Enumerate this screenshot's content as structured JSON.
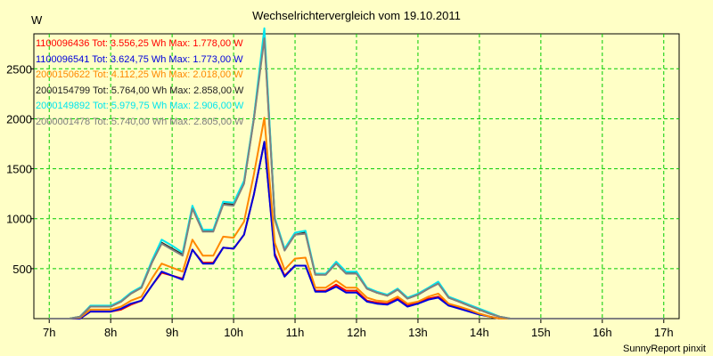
{
  "title": "Wechselrichtervergleich vom 19.10.2011",
  "y_unit": "W",
  "footer": "SunnyReport pinxit",
  "chart_data": {
    "type": "line",
    "title": "Wechselrichtervergleich vom 19.10.2011",
    "xlabel": "",
    "ylabel": "W",
    "x_range": [
      6.75,
      17.25
    ],
    "ylim": [
      0,
      2850
    ],
    "x_ticks": [
      7,
      8,
      9,
      10,
      11,
      12,
      13,
      14,
      15,
      16,
      17
    ],
    "x_tick_labels": [
      "7h",
      "8h",
      "9h",
      "10h",
      "11h",
      "12h",
      "13h",
      "14h",
      "15h",
      "16h",
      "17h"
    ],
    "y_ticks": [
      500,
      1000,
      1500,
      2000,
      2500
    ],
    "y_tick_labels": [
      "500",
      "1000",
      "1500",
      "2000",
      "2500"
    ],
    "grid": true,
    "legend_position": "top-left",
    "x": [
      7.0,
      7.33,
      7.5,
      7.67,
      7.83,
      8.0,
      8.17,
      8.33,
      8.5,
      8.67,
      8.83,
      9.0,
      9.17,
      9.33,
      9.5,
      9.67,
      9.83,
      10.0,
      10.17,
      10.33,
      10.5,
      10.67,
      10.83,
      11.0,
      11.17,
      11.33,
      11.5,
      11.67,
      11.83,
      12.0,
      12.17,
      12.33,
      12.5,
      12.67,
      12.83,
      13.0,
      13.17,
      13.33,
      13.5,
      13.67,
      13.83,
      14.0,
      14.17,
      14.33,
      14.5,
      14.67,
      14.83,
      15.0,
      15.17,
      15.33,
      15.5,
      15.67,
      15.83,
      16.0,
      16.17,
      16.33,
      16.5,
      16.67,
      16.83,
      17.0
    ],
    "series": [
      {
        "name": "1100096436 Tot: 3.556,25 Wh Max: 1.778,00 W",
        "color": "#ff0000",
        "values": [
          0,
          0,
          0,
          70,
          70,
          70,
          90,
          140,
          180,
          330,
          460,
          430,
          400,
          690,
          560,
          560,
          710,
          700,
          840,
          1240,
          1770,
          650,
          430,
          530,
          530,
          280,
          280,
          340,
          280,
          280,
          180,
          160,
          150,
          200,
          130,
          160,
          200,
          220,
          140,
          110,
          80,
          50,
          20,
          0,
          0,
          0,
          0,
          0,
          0,
          0,
          0,
          0,
          0,
          0,
          0,
          0,
          0,
          0,
          0,
          0
        ]
      },
      {
        "name": "1100096541 Tot: 3.624,75 Wh Max: 1.773,00 W",
        "color": "#0000dd",
        "values": [
          0,
          0,
          0,
          70,
          70,
          70,
          100,
          150,
          180,
          330,
          470,
          430,
          390,
          690,
          550,
          550,
          710,
          700,
          840,
          1240,
          1770,
          630,
          420,
          530,
          530,
          270,
          270,
          320,
          260,
          260,
          170,
          150,
          140,
          190,
          120,
          150,
          190,
          210,
          130,
          100,
          70,
          40,
          20,
          0,
          0,
          0,
          0,
          0,
          0,
          0,
          0,
          0,
          0,
          0,
          0,
          0,
          0,
          0,
          0,
          0
        ]
      },
      {
        "name": "2000150622 Tot: 4.112,25 Wh Max: 2.018,00 W",
        "color": "#ff8800",
        "values": [
          0,
          0,
          10,
          90,
          90,
          90,
          120,
          180,
          220,
          400,
          550,
          510,
          470,
          790,
          630,
          630,
          820,
          810,
          970,
          1440,
          2010,
          760,
          490,
          600,
          610,
          310,
          310,
          380,
          310,
          310,
          210,
          180,
          170,
          220,
          150,
          170,
          220,
          250,
          150,
          120,
          90,
          50,
          20,
          0,
          0,
          0,
          0,
          0,
          0,
          0,
          0,
          0,
          0,
          0,
          0,
          0,
          0,
          0,
          0,
          0
        ]
      },
      {
        "name": "2000154799 Tot: 5.764,00 Wh Max: 2.858,00 W",
        "color": "#222222",
        "values": [
          0,
          0,
          20,
          120,
          120,
          120,
          170,
          250,
          310,
          560,
          760,
          700,
          640,
          1110,
          880,
          880,
          1150,
          1140,
          1360,
          2000,
          2850,
          1000,
          690,
          840,
          860,
          440,
          440,
          560,
          460,
          460,
          300,
          260,
          230,
          290,
          200,
          240,
          300,
          360,
          210,
          170,
          130,
          90,
          50,
          20,
          0,
          0,
          0,
          0,
          0,
          0,
          0,
          0,
          0,
          0,
          0,
          0,
          0,
          0,
          0,
          0
        ]
      },
      {
        "name": "2000149892 Tot: 5.979,75 Wh Max: 2.906,00 W",
        "color": "#00e5ee",
        "values": [
          0,
          0,
          20,
          130,
          130,
          130,
          180,
          260,
          320,
          580,
          790,
          730,
          660,
          1130,
          890,
          890,
          1170,
          1160,
          1380,
          2010,
          2906,
          1010,
          700,
          860,
          880,
          450,
          450,
          570,
          470,
          470,
          310,
          270,
          240,
          300,
          210,
          250,
          310,
          370,
          220,
          180,
          140,
          100,
          60,
          20,
          0,
          0,
          0,
          0,
          0,
          0,
          0,
          0,
          0,
          0,
          0,
          0,
          0,
          0,
          0,
          0
        ]
      },
      {
        "name": "2000001478 Tot: 5.740,00 Wh Max: 2.805,00 W",
        "color": "#808080",
        "values": [
          0,
          0,
          20,
          120,
          120,
          120,
          170,
          250,
          310,
          560,
          750,
          690,
          630,
          1100,
          870,
          870,
          1140,
          1130,
          1350,
          1990,
          2805,
          990,
          680,
          840,
          850,
          440,
          440,
          550,
          450,
          450,
          300,
          260,
          230,
          290,
          200,
          240,
          300,
          350,
          210,
          170,
          130,
          90,
          50,
          20,
          0,
          0,
          0,
          0,
          0,
          0,
          0,
          0,
          0,
          0,
          0,
          0,
          0,
          0,
          0,
          0
        ]
      }
    ]
  }
}
